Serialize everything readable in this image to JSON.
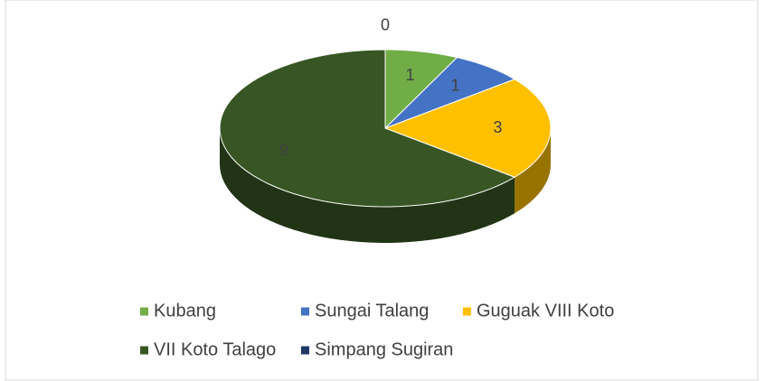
{
  "chart_data": {
    "type": "pie",
    "three_d": true,
    "categories": [
      "Kubang",
      "Sungai Talang",
      "Guguak VIII Koto",
      "VII Koto Talago",
      "Simpang Sugiran"
    ],
    "values": [
      1,
      1,
      3,
      9,
      0
    ],
    "colors": [
      "#70ad47",
      "#4472c4",
      "#ffc000",
      "#375623",
      "#1f3864"
    ],
    "legend": "bottom"
  }
}
